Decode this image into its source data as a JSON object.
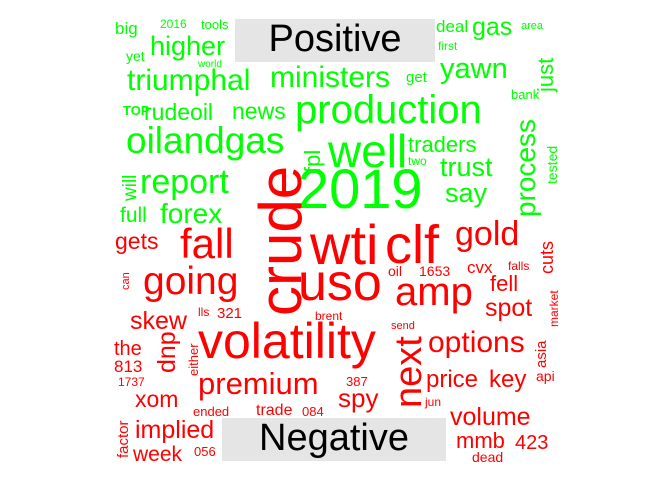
{
  "colors": {
    "positive": "#00ff00",
    "negative": "#ff0000",
    "label_bg": "#e5e5e5",
    "label_text": "#000000"
  },
  "labels": {
    "positive": "Positive",
    "negative": "Negative"
  },
  "words": {
    "big": "big",
    "y2016": "2016",
    "tools": "tools",
    "deal": "deal",
    "gas": "gas",
    "area": "area",
    "yet": "yet",
    "world": "world",
    "higher": "higher",
    "first": "first",
    "just": "just",
    "triumphal": "triumphal",
    "ministers": "ministers",
    "get": "get",
    "yawn": "yawn",
    "top": "TOP",
    "rudeoil": "rudeoil",
    "news": "news",
    "production": "production",
    "bank": "bank",
    "oilandgas": "oilandgas",
    "fpl": "fpl",
    "well": "well",
    "traders": "traders",
    "two": "two",
    "tested": "tested",
    "y2019": "2019",
    "trust": "trust",
    "process": "process",
    "report": "report",
    "say": "say",
    "will": "will",
    "full": "full",
    "forex": "forex",
    "crude": "crude",
    "gets": "gets",
    "fall": "fall",
    "wti": "wti",
    "clf": "clf",
    "gold": "gold",
    "cuts": "cuts",
    "going": "going",
    "uso": "uso",
    "amp": "amp",
    "oil": "oil",
    "n1653": "1653",
    "cvx": "cvx",
    "falls": "falls",
    "fell": "fell",
    "can": "can",
    "market": "market",
    "skew": "skew",
    "lls": "lls",
    "n321": "321",
    "brent": "brent",
    "spot": "spot",
    "volatility": "volatility",
    "send": "send",
    "next": "next",
    "options": "options",
    "asia": "asia",
    "the": "the",
    "dnp": "dnp",
    "either": "either",
    "n813": "813",
    "premium": "premium",
    "price": "price",
    "key": "key",
    "api": "api",
    "n1737": "1737",
    "n387": "387",
    "xom": "xom",
    "spy": "spy",
    "jun": "jun",
    "ended": "ended",
    "trade": "trade",
    "n084": "084",
    "volume": "volume",
    "factor": "factor",
    "implied": "implied",
    "mmb": "mmb",
    "n423": "423",
    "week": "week",
    "n056": "056",
    "dead": "dead"
  }
}
